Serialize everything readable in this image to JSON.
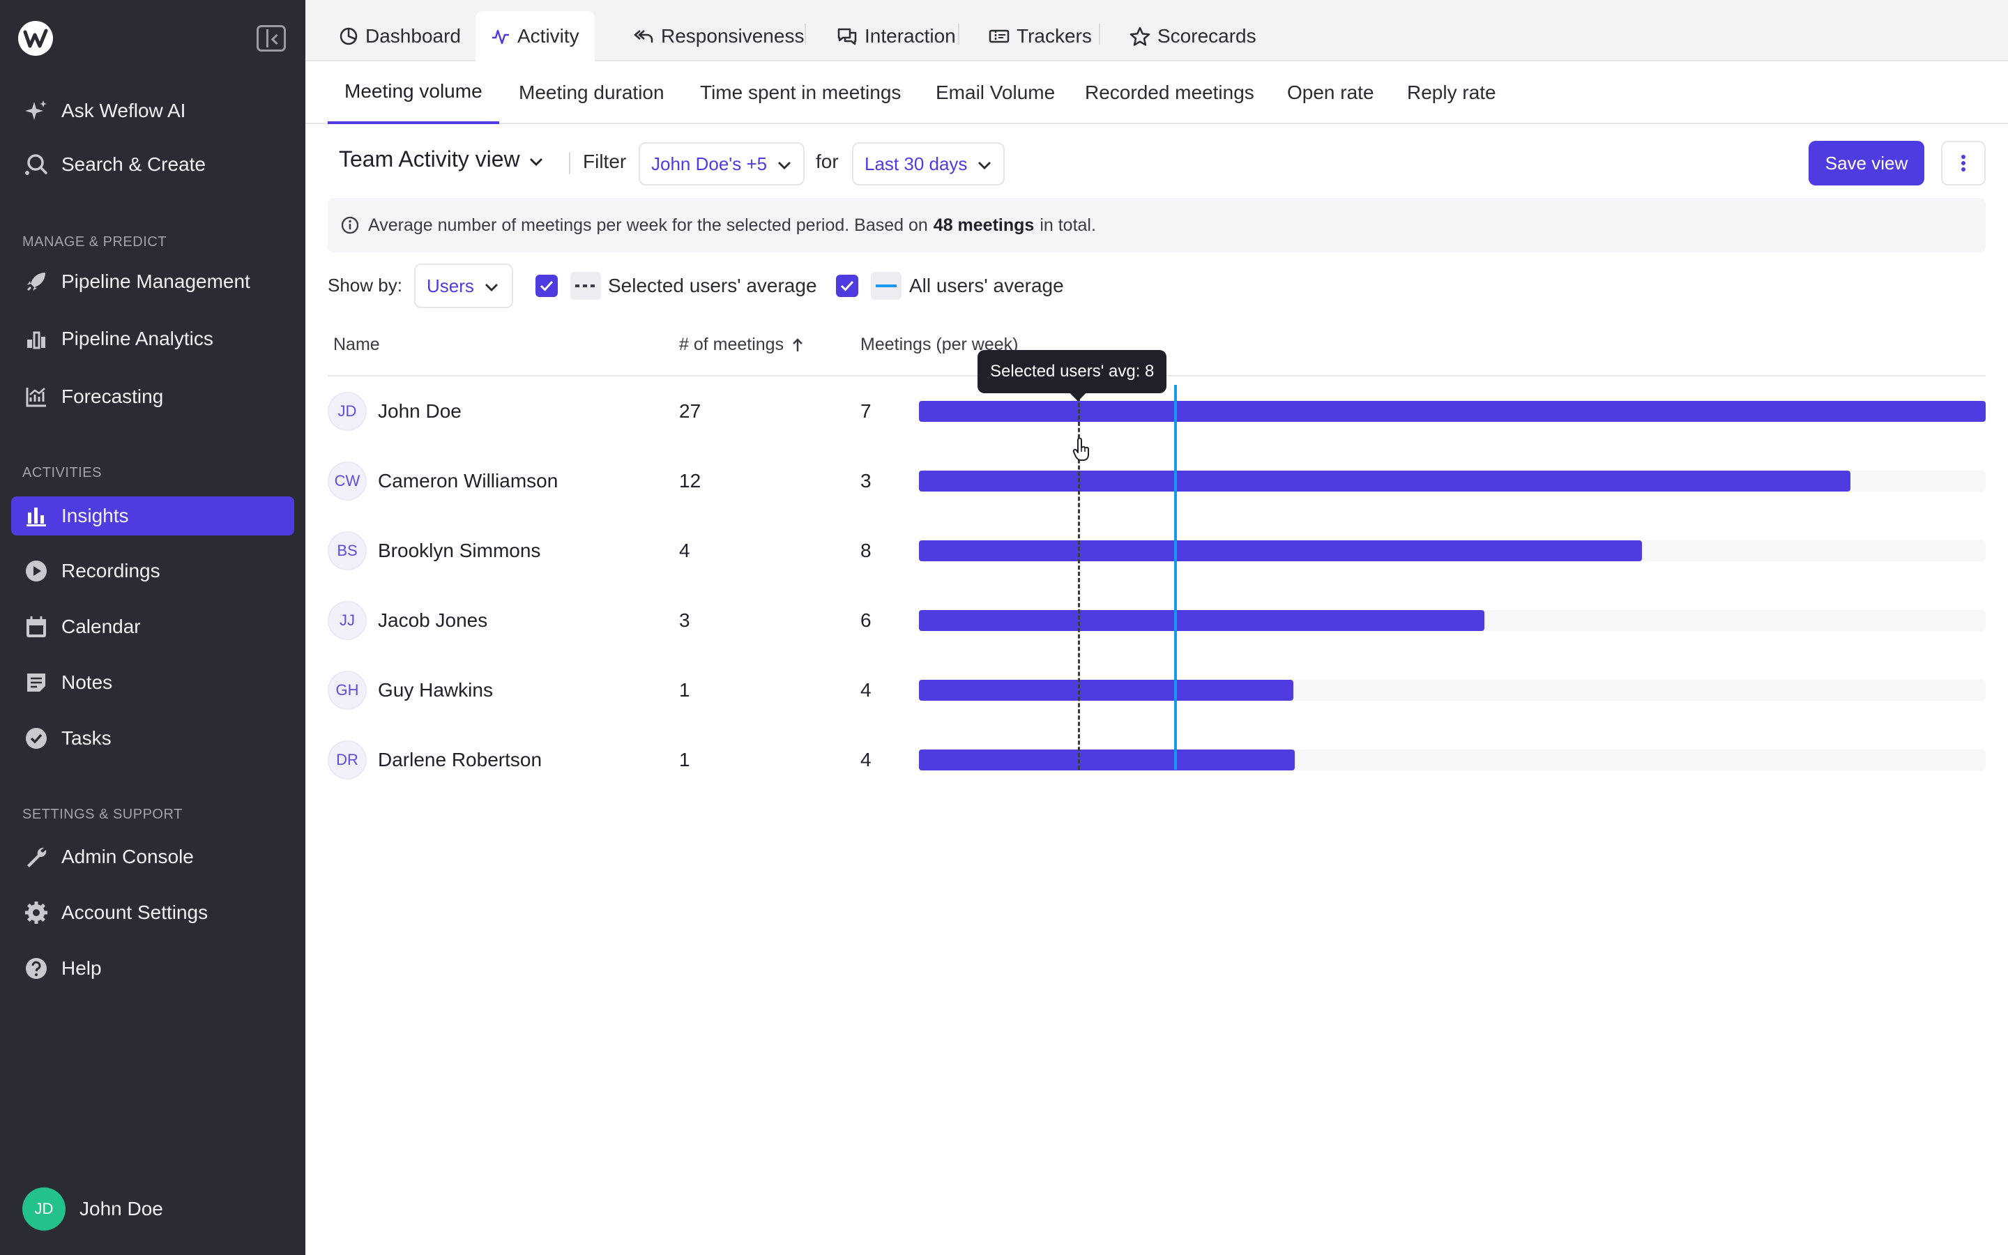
{
  "sidebar": {
    "top_items": [
      {
        "label": "Ask Weflow AI",
        "icon": "sparkle-icon"
      },
      {
        "label": "Search & Create",
        "icon": "search-plus-icon"
      }
    ],
    "sections": [
      {
        "title": "MANAGE & PREDICT",
        "items": [
          {
            "label": "Pipeline Management",
            "icon": "rocket-icon"
          },
          {
            "label": "Pipeline Analytics",
            "icon": "bar-chart-icon"
          },
          {
            "label": "Forecasting",
            "icon": "forecast-icon"
          }
        ]
      },
      {
        "title": "ACTIVITIES",
        "items": [
          {
            "label": "Insights",
            "icon": "insights-icon",
            "active": true
          },
          {
            "label": "Recordings",
            "icon": "play-icon"
          },
          {
            "label": "Calendar",
            "icon": "calendar-icon"
          },
          {
            "label": "Notes",
            "icon": "notes-icon"
          },
          {
            "label": "Tasks",
            "icon": "check-circle-icon"
          }
        ]
      },
      {
        "title": "SETTINGS & SUPPORT",
        "items": [
          {
            "label": "Admin Console",
            "icon": "wrench-icon"
          },
          {
            "label": "Account Settings",
            "icon": "gear-icon"
          },
          {
            "label": "Help",
            "icon": "help-icon"
          }
        ]
      }
    ],
    "user": {
      "initials": "JD",
      "name": "John Doe"
    }
  },
  "top_tabs": [
    {
      "label": "Dashboard",
      "icon": "pie-icon"
    },
    {
      "label": "Activity",
      "icon": "activity-icon",
      "active": true
    },
    {
      "label": "Responsiveness",
      "icon": "reply-all-icon"
    },
    {
      "label": "Interaction",
      "icon": "chat-icon"
    },
    {
      "label": "Trackers",
      "icon": "ticket-icon"
    },
    {
      "label": "Scorecards",
      "icon": "star-icon"
    }
  ],
  "sub_tabs": [
    {
      "label": "Meeting volume",
      "active": true
    },
    {
      "label": "Meeting duration"
    },
    {
      "label": "Time spent in meetings"
    },
    {
      "label": "Email Volume"
    },
    {
      "label": "Recorded meetings"
    },
    {
      "label": "Open rate"
    },
    {
      "label": "Reply rate"
    }
  ],
  "toolbar": {
    "view_label": "Team Activity view",
    "filter_label": "Filter",
    "filter_value": "John Doe's +5",
    "for_label": "for",
    "period_value": "Last 30 days",
    "save_label": "Save view"
  },
  "info": {
    "text_before": "Average number of meetings per week for the selected period. Based on",
    "bold": "48 meetings",
    "text_after": "in total."
  },
  "show_by": {
    "label": "Show by:",
    "value": "Users",
    "selected_avg_label": "Selected users' average",
    "selected_avg_checked": true,
    "all_avg_label": "All users' average",
    "all_avg_checked": true
  },
  "table": {
    "headers": {
      "name": "Name",
      "meetings": "# of meetings",
      "per_week": "Meetings (per week)"
    },
    "sort": "ascending",
    "rows": [
      {
        "initials": "JD",
        "name": "John Doe",
        "meetings": "27",
        "per_week": "7",
        "bar_fraction": 1.0
      },
      {
        "initials": "CW",
        "name": "Cameron Williamson",
        "meetings": "12",
        "per_week": "3",
        "bar_fraction": 0.873
      },
      {
        "initials": "BS",
        "name": "Brooklyn Simmons",
        "meetings": "4",
        "per_week": "8",
        "bar_fraction": 0.678
      },
      {
        "initials": "JJ",
        "name": "Jacob Jones",
        "meetings": "3",
        "per_week": "6",
        "bar_fraction": 0.53
      },
      {
        "initials": "GH",
        "name": "Guy Hawkins",
        "meetings": "1",
        "per_week": "4",
        "bar_fraction": 0.351
      },
      {
        "initials": "DR",
        "name": "Darlene Robertson",
        "meetings": "1",
        "per_week": "4",
        "bar_fraction": 0.352
      }
    ]
  },
  "tooltip": "Selected users' avg: 8",
  "colors": {
    "accent": "#4f3ce0",
    "sidebar_bg": "#2b2c33",
    "all_avg_line": "#1a97f0",
    "avatar_green": "#22c28a"
  }
}
